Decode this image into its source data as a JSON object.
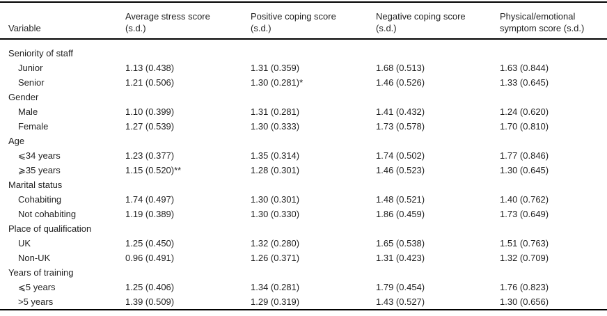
{
  "page": {
    "background_color": "#ffffff",
    "text_color": "#1f1f1f",
    "rule_color": "#000000"
  },
  "table": {
    "columns": [
      {
        "line1": "Variable",
        "line2": ""
      },
      {
        "line1": "Average stress score",
        "line2": "(s.d.)"
      },
      {
        "line1": "Positive coping score",
        "line2": "(s.d.)"
      },
      {
        "line1": "Negative coping score",
        "line2": "(s.d.)"
      },
      {
        "line1": "Physical/emotional",
        "line2": "symptom score (s.d.)"
      }
    ],
    "rows": [
      {
        "label": "Seniority of staff",
        "indent": false,
        "values": [
          "",
          "",
          "",
          ""
        ]
      },
      {
        "label": "Junior",
        "indent": true,
        "values": [
          "1.13 (0.438)",
          "1.31 (0.359)",
          "1.68 (0.513)",
          "1.63 (0.844)"
        ]
      },
      {
        "label": "Senior",
        "indent": true,
        "values": [
          "1.21 (0.506)",
          "1.30 (0.281)*",
          "1.46 (0.526)",
          "1.33 (0.645)"
        ]
      },
      {
        "label": "Gender",
        "indent": false,
        "values": [
          "",
          "",
          "",
          ""
        ]
      },
      {
        "label": "Male",
        "indent": true,
        "values": [
          "1.10 (0.399)",
          "1.31 (0.281)",
          "1.41 (0.432)",
          "1.24 (0.620)"
        ]
      },
      {
        "label": "Female",
        "indent": true,
        "values": [
          "1.27 (0.539)",
          "1.30 (0.333)",
          "1.73 (0.578)",
          "1.70 (0.810)"
        ]
      },
      {
        "label": "Age",
        "indent": false,
        "values": [
          "",
          "",
          "",
          ""
        ]
      },
      {
        "label": "⩽34 years",
        "indent": true,
        "values": [
          "1.23 (0.377)",
          "1.35 (0.314)",
          "1.74 (0.502)",
          "1.77 (0.846)"
        ]
      },
      {
        "label": "⩾35 years",
        "indent": true,
        "values": [
          "1.15 (0.520)**",
          "1.28 (0.301)",
          "1.46 (0.523)",
          "1.30 (0.645)"
        ]
      },
      {
        "label": "Marital status",
        "indent": false,
        "values": [
          "",
          "",
          "",
          ""
        ]
      },
      {
        "label": "Cohabiting",
        "indent": true,
        "values": [
          "1.74 (0.497)",
          "1.30 (0.301)",
          "1.48 (0.521)",
          "1.40 (0.762)"
        ]
      },
      {
        "label": "Not cohabiting",
        "indent": true,
        "values": [
          "1.19 (0.389)",
          "1.30 (0.330)",
          "1.86 (0.459)",
          "1.73 (0.649)"
        ]
      },
      {
        "label": "Place of qualification",
        "indent": false,
        "values": [
          "",
          "",
          "",
          ""
        ]
      },
      {
        "label": "UK",
        "indent": true,
        "values": [
          "1.25 (0.450)",
          "1.32 (0.280)",
          "1.65 (0.538)",
          "1.51 (0.763)"
        ]
      },
      {
        "label": "Non-UK",
        "indent": true,
        "values": [
          "0.96 (0.491)",
          "1.26 (0.371)",
          "1.31 (0.423)",
          "1.32 (0.709)"
        ]
      },
      {
        "label": "Years of training",
        "indent": false,
        "values": [
          "",
          "",
          "",
          ""
        ]
      },
      {
        "label": "⩽5 years",
        "indent": true,
        "values": [
          "1.25 (0.406)",
          "1.34 (0.281)",
          "1.79 (0.454)",
          "1.76 (0.823)"
        ]
      },
      {
        "label": ">5 years",
        "indent": true,
        "values": [
          "1.39 (0.509)",
          "1.29 (0.319)",
          "1.43 (0.527)",
          "1.30 (0.656)"
        ]
      }
    ]
  }
}
